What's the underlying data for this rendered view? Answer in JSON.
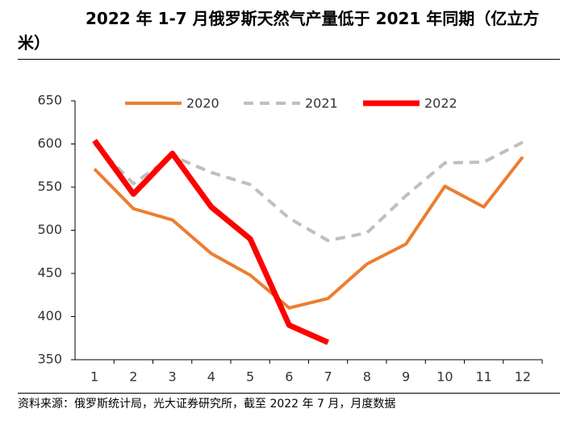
{
  "chart_data": {
    "type": "line",
    "title": "2022 年 1-7 月俄罗斯天然气产量低于 2021 年同期（亿立方米）",
    "source": "资料来源：俄罗斯统计局，光大证券研究所，截至 2022 年 7 月，月度数据",
    "categories": [
      "1",
      "2",
      "3",
      "4",
      "5",
      "6",
      "7",
      "8",
      "9",
      "10",
      "11",
      "12"
    ],
    "series": [
      {
        "name": "2020",
        "color": "#ed7d31",
        "dash": "none",
        "width": 4,
        "values": [
          571,
          525,
          512,
          473,
          448,
          410,
          421,
          461,
          484,
          551,
          527,
          585
        ]
      },
      {
        "name": "2021",
        "color": "#bfbfbf",
        "dash": "12 8",
        "width": 4,
        "values": [
          600,
          554,
          586,
          567,
          553,
          514,
          488,
          497,
          540,
          578,
          579,
          602
        ]
      },
      {
        "name": "2022",
        "color": "#ff0000",
        "dash": "none",
        "width": 7,
        "values": [
          604,
          542,
          589,
          527,
          490,
          390,
          370,
          null,
          null,
          null,
          null,
          null
        ]
      }
    ],
    "ylim": [
      350,
      650
    ],
    "yticks": [
      350,
      400,
      450,
      500,
      550,
      600,
      650
    ],
    "legend": "top"
  }
}
